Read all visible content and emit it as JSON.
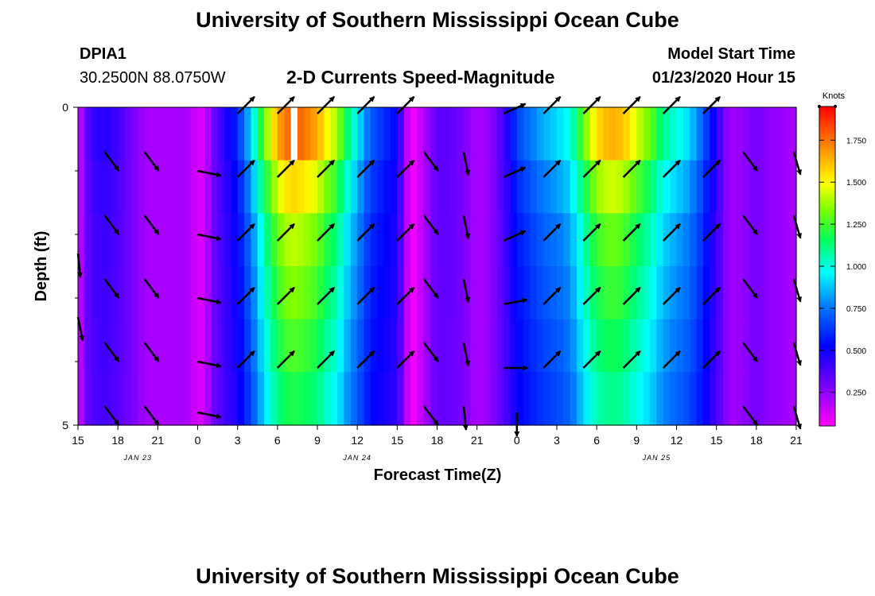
{
  "header": {
    "title_top": "University of Southern Mississippi Ocean Cube",
    "title_bottom": "University of Southern Mississippi Ocean Cube",
    "station_id": "DPIA1",
    "station_coords": "30.2500N 88.0750W",
    "chart_title": "2-D Currents Speed-Magnitude",
    "model_start_label": "Model Start Time",
    "model_start_value": "01/23/2020 Hour 15"
  },
  "colors": {
    "arrow": "#000000",
    "missing_cell": "#ffffff"
  },
  "chart_data": {
    "type": "heatmap",
    "title": "2-D Currents Speed-Magnitude",
    "xlabel": "Forecast Time(Z)",
    "ylabel": "Depth (ft)",
    "colorbar_label": "Knots",
    "colorbar_range": [
      0.05,
      1.95
    ],
    "colorbar_ticks": [
      "0.250",
      "0.500",
      "0.750",
      "1.000",
      "1.250",
      "1.500",
      "1.750"
    ],
    "colorbar_tick_values": [
      0.25,
      0.5,
      0.75,
      1.0,
      1.25,
      1.5,
      1.75
    ],
    "y_range": [
      0,
      5
    ],
    "y_tick_labels": [
      "0",
      "5"
    ],
    "y_minor_ticks": [
      1,
      2,
      3,
      4
    ],
    "x_hours_from_start": [
      0,
      3,
      6,
      9,
      12,
      15,
      18,
      21,
      24,
      27,
      30,
      33,
      36,
      39,
      42,
      45,
      48,
      51,
      54
    ],
    "x_tick_labels": [
      "15",
      "18",
      "21",
      "0",
      "3",
      "6",
      "9",
      "12",
      "15",
      "18",
      "21",
      "0",
      "3",
      "6",
      "9",
      "12",
      "15",
      "18",
      "21"
    ],
    "x_range_hours": [
      0,
      54
    ],
    "date_labels": [
      {
        "text": "JAN 23",
        "hour": 4.5
      },
      {
        "text": "JAN 24",
        "hour": 21
      },
      {
        "text": "JAN 25",
        "hour": 43.5
      }
    ],
    "depth_layers": [
      0.5,
      1.5,
      2.5,
      3.5,
      4.5
    ],
    "speed_profile": {
      "hours": [
        0,
        0.5,
        1,
        2,
        3,
        4,
        5,
        6,
        7,
        8,
        9,
        9.5,
        10,
        11,
        12,
        13,
        14,
        15,
        16,
        17,
        18,
        19,
        19.5,
        20,
        21,
        22,
        24,
        25,
        27,
        28,
        29,
        30,
        31,
        32,
        33,
        34,
        35,
        36,
        37,
        38,
        39,
        40,
        41,
        42,
        43,
        44,
        45,
        46,
        47,
        48,
        49,
        50,
        51,
        52,
        54
      ],
      "speeds": [
        0.08,
        0.3,
        0.42,
        0.46,
        0.4,
        0.3,
        0.22,
        0.2,
        0.2,
        0.22,
        0.12,
        0.12,
        0.28,
        0.45,
        0.6,
        0.9,
        1.3,
        1.65,
        1.8,
        1.75,
        1.65,
        1.45,
        1.4,
        1.2,
        0.95,
        0.7,
        0.52,
        0.04,
        0.35,
        0.35,
        0.28,
        0.2,
        0.24,
        0.4,
        0.65,
        0.75,
        0.85,
        0.9,
        1.0,
        1.3,
        1.55,
        1.65,
        1.6,
        1.45,
        1.3,
        1.1,
        1.0,
        0.9,
        0.7,
        0.45,
        0.2,
        0.25,
        0.3,
        0.25,
        0.2
      ],
      "depth_factors": [
        1.0,
        0.85,
        0.75,
        0.7,
        0.65,
        0.6
      ],
      "missing_cells": [
        {
          "hour": 16,
          "layer": 0
        }
      ]
    },
    "vectors": [
      {
        "hour": 0,
        "depth": 2.3,
        "u": 0.1,
        "v": -1.0
      },
      {
        "hour": 0,
        "depth": 3.3,
        "u": 0.2,
        "v": -1.0
      },
      {
        "hour": 2,
        "depth": 0.7,
        "u": 0.6,
        "v": -0.8
      },
      {
        "hour": 2,
        "depth": 1.7,
        "u": 0.6,
        "v": -0.8
      },
      {
        "hour": 2,
        "depth": 2.7,
        "u": 0.6,
        "v": -0.8
      },
      {
        "hour": 2,
        "depth": 3.7,
        "u": 0.6,
        "v": -0.8
      },
      {
        "hour": 2,
        "depth": 4.7,
        "u": 0.6,
        "v": -0.8
      },
      {
        "hour": 5,
        "depth": 0.7,
        "u": 0.6,
        "v": -0.8
      },
      {
        "hour": 5,
        "depth": 1.7,
        "u": 0.6,
        "v": -0.8
      },
      {
        "hour": 5,
        "depth": 2.7,
        "u": 0.6,
        "v": -0.8
      },
      {
        "hour": 5,
        "depth": 3.7,
        "u": 0.6,
        "v": -0.8
      },
      {
        "hour": 5,
        "depth": 4.7,
        "u": 0.6,
        "v": -0.8
      },
      {
        "hour": 9,
        "depth": 1.0,
        "u": 1.0,
        "v": -0.2
      },
      {
        "hour": 9,
        "depth": 2.0,
        "u": 1.0,
        "v": -0.2
      },
      {
        "hour": 9,
        "depth": 3.0,
        "u": 1.0,
        "v": -0.2
      },
      {
        "hour": 9,
        "depth": 4.0,
        "u": 1.0,
        "v": -0.2
      },
      {
        "hour": 9,
        "depth": 4.8,
        "u": 1.0,
        "v": -0.2
      },
      {
        "hour": 12,
        "depth": 0.1,
        "u": 0.7,
        "v": 0.7
      },
      {
        "hour": 12,
        "depth": 1.1,
        "u": 0.7,
        "v": 0.7
      },
      {
        "hour": 12,
        "depth": 2.1,
        "u": 0.7,
        "v": 0.7
      },
      {
        "hour": 12,
        "depth": 3.1,
        "u": 0.7,
        "v": 0.7
      },
      {
        "hour": 12,
        "depth": 4.1,
        "u": 0.7,
        "v": 0.7
      },
      {
        "hour": 15,
        "depth": 0.1,
        "u": 0.7,
        "v": 0.7
      },
      {
        "hour": 15,
        "depth": 1.1,
        "u": 0.7,
        "v": 0.7
      },
      {
        "hour": 15,
        "depth": 2.1,
        "u": 0.7,
        "v": 0.7
      },
      {
        "hour": 15,
        "depth": 3.1,
        "u": 0.7,
        "v": 0.7
      },
      {
        "hour": 15,
        "depth": 4.1,
        "u": 0.7,
        "v": 0.7
      },
      {
        "hour": 18,
        "depth": 0.1,
        "u": 0.7,
        "v": 0.7
      },
      {
        "hour": 18,
        "depth": 1.1,
        "u": 0.7,
        "v": 0.7
      },
      {
        "hour": 18,
        "depth": 2.1,
        "u": 0.7,
        "v": 0.7
      },
      {
        "hour": 18,
        "depth": 3.1,
        "u": 0.7,
        "v": 0.7
      },
      {
        "hour": 18,
        "depth": 4.1,
        "u": 0.7,
        "v": 0.7
      },
      {
        "hour": 21,
        "depth": 0.1,
        "u": 0.7,
        "v": 0.7
      },
      {
        "hour": 21,
        "depth": 1.1,
        "u": 0.7,
        "v": 0.7
      },
      {
        "hour": 21,
        "depth": 2.1,
        "u": 0.7,
        "v": 0.7
      },
      {
        "hour": 21,
        "depth": 3.1,
        "u": 0.7,
        "v": 0.7
      },
      {
        "hour": 21,
        "depth": 4.1,
        "u": 0.7,
        "v": 0.7
      },
      {
        "hour": 24,
        "depth": 0.1,
        "u": 0.7,
        "v": 0.7
      },
      {
        "hour": 24,
        "depth": 1.1,
        "u": 0.7,
        "v": 0.7
      },
      {
        "hour": 24,
        "depth": 2.1,
        "u": 0.7,
        "v": 0.7
      },
      {
        "hour": 24,
        "depth": 3.1,
        "u": 0.7,
        "v": 0.7
      },
      {
        "hour": 24,
        "depth": 4.1,
        "u": 0.7,
        "v": 0.7
      },
      {
        "hour": 26,
        "depth": 0.7,
        "u": 0.6,
        "v": -0.8
      },
      {
        "hour": 26,
        "depth": 1.7,
        "u": 0.6,
        "v": -0.8
      },
      {
        "hour": 26,
        "depth": 2.7,
        "u": 0.6,
        "v": -0.8
      },
      {
        "hour": 26,
        "depth": 3.7,
        "u": 0.6,
        "v": -0.8
      },
      {
        "hour": 26,
        "depth": 4.7,
        "u": 0.6,
        "v": -0.8
      },
      {
        "hour": 29,
        "depth": 0.7,
        "u": 0.2,
        "v": -1.0
      },
      {
        "hour": 29,
        "depth": 1.7,
        "u": 0.2,
        "v": -1.0
      },
      {
        "hour": 29,
        "depth": 2.7,
        "u": 0.2,
        "v": -1.0
      },
      {
        "hour": 29,
        "depth": 3.7,
        "u": 0.2,
        "v": -1.0
      },
      {
        "hour": 29,
        "depth": 4.7,
        "u": 0.1,
        "v": -1.0
      },
      {
        "hour": 32,
        "depth": 0.1,
        "u": 0.9,
        "v": 0.4
      },
      {
        "hour": 32,
        "depth": 1.1,
        "u": 0.9,
        "v": 0.4
      },
      {
        "hour": 32,
        "depth": 2.1,
        "u": 0.9,
        "v": 0.4
      },
      {
        "hour": 32,
        "depth": 3.1,
        "u": 1.0,
        "v": 0.2
      },
      {
        "hour": 32,
        "depth": 4.1,
        "u": 1.0,
        "v": 0.0
      },
      {
        "hour": 33,
        "depth": 4.8,
        "u": 0.0,
        "v": -1.0
      },
      {
        "hour": 35,
        "depth": 0.1,
        "u": 0.7,
        "v": 0.7
      },
      {
        "hour": 35,
        "depth": 1.1,
        "u": 0.7,
        "v": 0.7
      },
      {
        "hour": 35,
        "depth": 2.1,
        "u": 0.7,
        "v": 0.7
      },
      {
        "hour": 35,
        "depth": 3.1,
        "u": 0.7,
        "v": 0.7
      },
      {
        "hour": 35,
        "depth": 4.1,
        "u": 0.7,
        "v": 0.7
      },
      {
        "hour": 38,
        "depth": 0.1,
        "u": 0.7,
        "v": 0.7
      },
      {
        "hour": 38,
        "depth": 1.1,
        "u": 0.7,
        "v": 0.7
      },
      {
        "hour": 38,
        "depth": 2.1,
        "u": 0.7,
        "v": 0.7
      },
      {
        "hour": 38,
        "depth": 3.1,
        "u": 0.7,
        "v": 0.7
      },
      {
        "hour": 38,
        "depth": 4.1,
        "u": 0.7,
        "v": 0.7
      },
      {
        "hour": 41,
        "depth": 0.1,
        "u": 0.7,
        "v": 0.7
      },
      {
        "hour": 41,
        "depth": 1.1,
        "u": 0.7,
        "v": 0.7
      },
      {
        "hour": 41,
        "depth": 2.1,
        "u": 0.7,
        "v": 0.7
      },
      {
        "hour": 41,
        "depth": 3.1,
        "u": 0.7,
        "v": 0.7
      },
      {
        "hour": 41,
        "depth": 4.1,
        "u": 0.7,
        "v": 0.7
      },
      {
        "hour": 44,
        "depth": 0.1,
        "u": 0.7,
        "v": 0.7
      },
      {
        "hour": 44,
        "depth": 1.1,
        "u": 0.7,
        "v": 0.7
      },
      {
        "hour": 44,
        "depth": 2.1,
        "u": 0.7,
        "v": 0.7
      },
      {
        "hour": 44,
        "depth": 3.1,
        "u": 0.7,
        "v": 0.7
      },
      {
        "hour": 44,
        "depth": 4.1,
        "u": 0.7,
        "v": 0.7
      },
      {
        "hour": 47,
        "depth": 0.1,
        "u": 0.7,
        "v": 0.7
      },
      {
        "hour": 47,
        "depth": 1.1,
        "u": 0.7,
        "v": 0.7
      },
      {
        "hour": 47,
        "depth": 2.1,
        "u": 0.7,
        "v": 0.7
      },
      {
        "hour": 47,
        "depth": 3.1,
        "u": 0.7,
        "v": 0.7
      },
      {
        "hour": 47,
        "depth": 4.1,
        "u": 0.7,
        "v": 0.7
      },
      {
        "hour": 50,
        "depth": 0.7,
        "u": 0.6,
        "v": -0.8
      },
      {
        "hour": 50,
        "depth": 1.7,
        "u": 0.6,
        "v": -0.8
      },
      {
        "hour": 50,
        "depth": 2.7,
        "u": 0.6,
        "v": -0.8
      },
      {
        "hour": 50,
        "depth": 3.7,
        "u": 0.6,
        "v": -0.8
      },
      {
        "hour": 50,
        "depth": 4.7,
        "u": 0.6,
        "v": -0.8
      },
      {
        "hour": 53.8,
        "depth": 0.7,
        "u": 0.3,
        "v": -1.0
      },
      {
        "hour": 53.8,
        "depth": 1.7,
        "u": 0.3,
        "v": -1.0
      },
      {
        "hour": 53.8,
        "depth": 2.7,
        "u": 0.3,
        "v": -1.0
      },
      {
        "hour": 53.8,
        "depth": 3.7,
        "u": 0.3,
        "v": -1.0
      },
      {
        "hour": 53.8,
        "depth": 4.7,
        "u": 0.3,
        "v": -1.0
      }
    ]
  }
}
